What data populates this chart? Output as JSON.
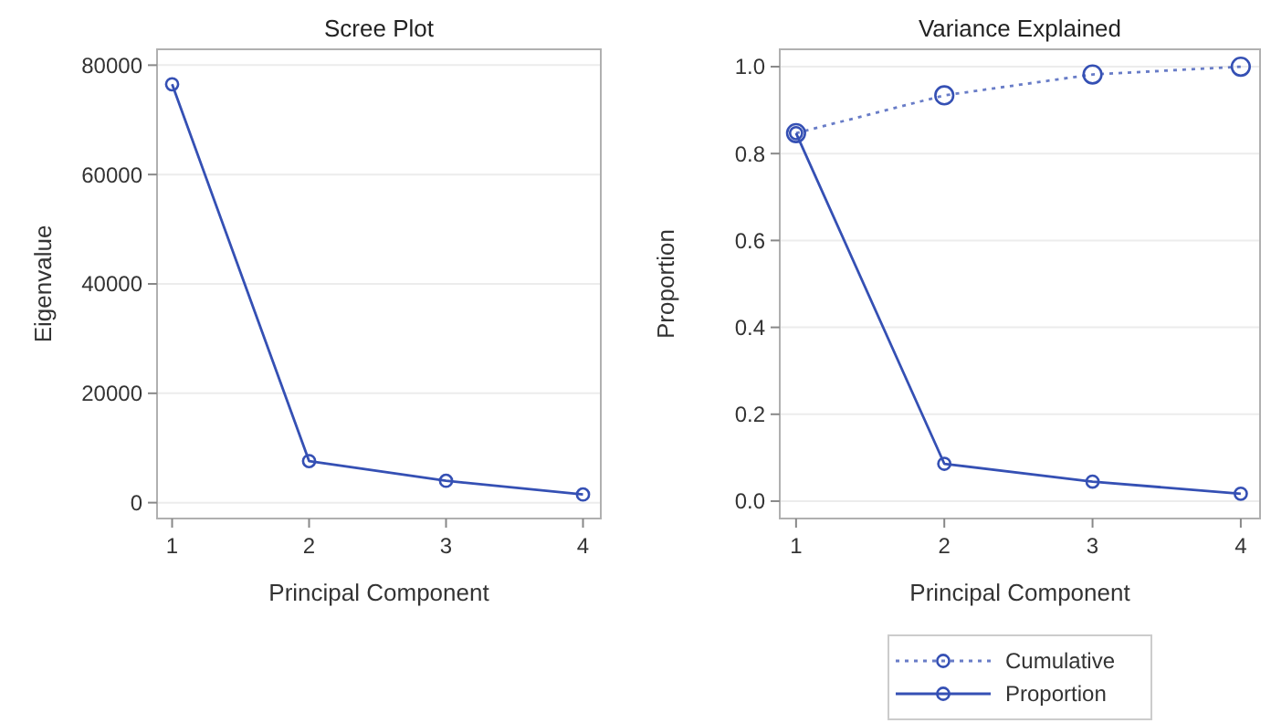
{
  "chart_data": [
    {
      "type": "line",
      "title": "Scree Plot",
      "xlabel": "Principal Component",
      "ylabel": "Eigenvalue",
      "x": [
        1,
        2,
        3,
        4
      ],
      "series": [
        {
          "color": "#3550b4",
          "values": [
            76500,
            7600,
            4000,
            1500
          ]
        }
      ],
      "xlim": [
        0.89,
        4.13
      ],
      "xticks": [
        1,
        2,
        3,
        4
      ],
      "ylim": [
        -2900,
        82900
      ],
      "yticks": [
        0,
        20000,
        40000,
        60000,
        80000
      ],
      "grid": "y",
      "marker": "circle",
      "line_style": "solid",
      "legend": false
    },
    {
      "type": "line",
      "title": "Variance Explained",
      "xlabel": "Principal Component",
      "ylabel": "Proportion",
      "x": [
        1,
        2,
        3,
        4
      ],
      "series": [
        {
          "name": "Cumulative",
          "color": "#3550b4",
          "line_style": "dotted",
          "values": [
            0.847,
            0.934,
            0.982,
            1.0
          ]
        },
        {
          "name": "Proportion",
          "color": "#3550b4",
          "line_style": "solid",
          "values": [
            0.847,
            0.086,
            0.045,
            0.017
          ]
        }
      ],
      "xlim": [
        0.89,
        4.13
      ],
      "xticks": [
        1,
        2,
        3,
        4
      ],
      "ylim": [
        -0.04,
        1.04
      ],
      "yticks": [
        {
          "value": 0,
          "label": "0.0"
        },
        0.2,
        0.4,
        0.6,
        0.8,
        {
          "value": 1,
          "label": "1.0"
        }
      ],
      "grid": "y",
      "marker": "circle",
      "legend": "bottom"
    }
  ]
}
